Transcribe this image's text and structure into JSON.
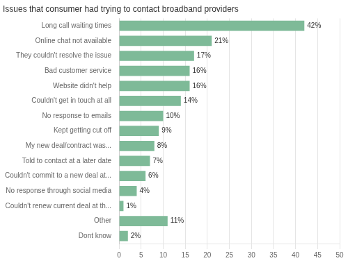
{
  "chart_data": {
    "type": "bar",
    "orientation": "horizontal",
    "title": "Issues that consumer had trying to contact broadband providers",
    "categories": [
      "Long call waiting times",
      "Online chat not available",
      "They couldn't resolve the issue",
      "Bad customer service",
      "Website didn't help",
      "Couldn't get in touch at all",
      "No response to emails",
      "Kept getting cut off",
      "My new deal/contract was...",
      "Told to contact at a later date",
      "Couldn't commit to a new deal at...",
      "No response through social media",
      "Couldn't renew current deal at th...",
      "Other",
      "Dont know"
    ],
    "values": [
      42,
      21,
      17,
      16,
      16,
      14,
      10,
      9,
      8,
      7,
      6,
      4,
      1,
      11,
      2
    ],
    "value_labels": [
      "42%",
      "21%",
      "17%",
      "16%",
      "16%",
      "14%",
      "10%",
      "9%",
      "8%",
      "7%",
      "6%",
      "4%",
      "1%",
      "11%",
      "2%"
    ],
    "data_labels": true,
    "color": "#7eba98",
    "xlim": [
      0,
      50
    ],
    "xticks": [
      0,
      5,
      10,
      15,
      20,
      25,
      30,
      35,
      40,
      45,
      50
    ],
    "grid": true
  }
}
